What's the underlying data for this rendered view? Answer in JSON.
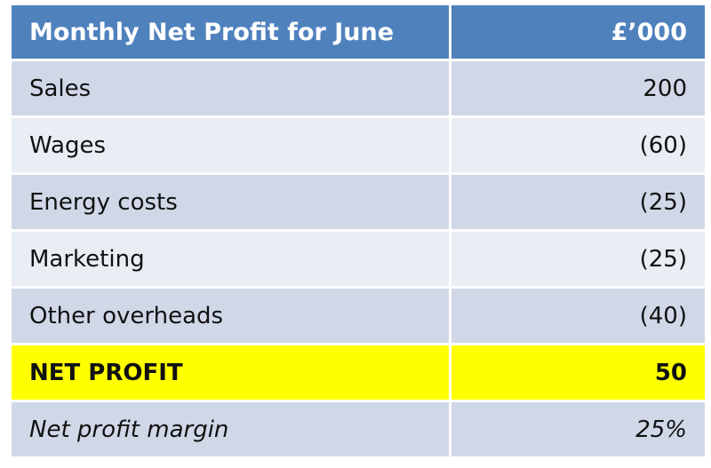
{
  "table": {
    "title": "Monthly Net Profit  for June",
    "unit_header": "£’000",
    "header_color": "#4f81bd",
    "rows": [
      {
        "label": "Sales",
        "value": "200",
        "style": "dark"
      },
      {
        "label": "Wages",
        "value": "(60)",
        "style": "light"
      },
      {
        "label": "Energy costs",
        "value": "(25)",
        "style": "dark"
      },
      {
        "label": "Marketing",
        "value": "(25)",
        "style": "light"
      },
      {
        "label": "Other overheads",
        "value": "(40)",
        "style": "dark"
      },
      {
        "label": "NET PROFIT",
        "value": "50",
        "style": "highlight",
        "highlight_color": "#ffff00"
      },
      {
        "label": "Net profit margin",
        "value": "25%",
        "style": "italic"
      }
    ]
  }
}
